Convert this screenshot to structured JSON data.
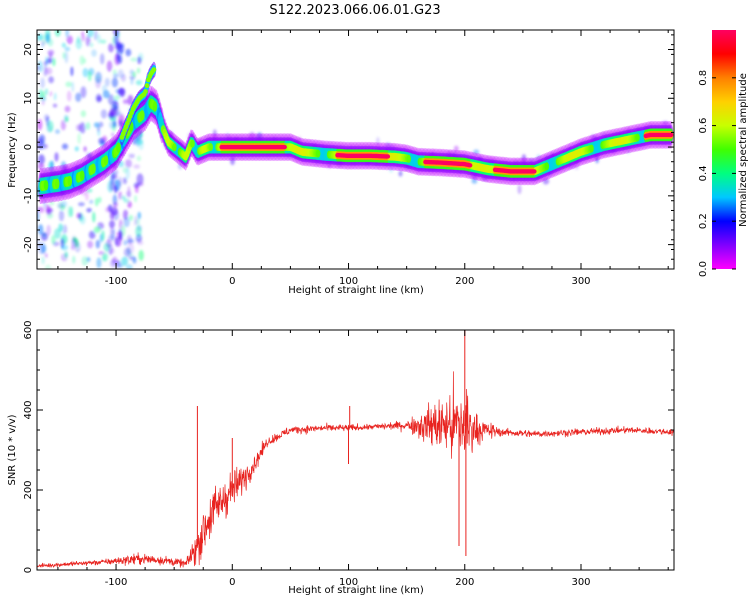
{
  "title": "S122.2023.066.06.01.G23",
  "colors": {
    "trace": "#e8231f",
    "scatter": "#5a00e0",
    "colormap": [
      "#ff00ff",
      "#8000ff",
      "#0000ff",
      "#00c8ff",
      "#00ff80",
      "#40ff00",
      "#c8ff00",
      "#ffd000",
      "#ff8000",
      "#ff0000",
      "#ff0060"
    ]
  },
  "chart_data": [
    {
      "type": "heatmap",
      "title": "S122.2023.066.06.01.G23",
      "xlabel": "Height of straight line (km)",
      "ylabel": "Frequency (Hz)",
      "xlim": [
        -168,
        380
      ],
      "ylim": [
        -25,
        24
      ],
      "x_ticks": [
        "-100",
        "0",
        "100",
        "200",
        "300"
      ],
      "y_ticks": [
        "-20",
        "-10",
        "0",
        "10",
        "20"
      ],
      "colorbar": {
        "label": "Normalized spectral amplitude",
        "range": [
          0.0,
          1.0
        ],
        "ticks": [
          "0.0",
          "0.2",
          "0.4",
          "0.6",
          "0.8"
        ]
      },
      "ridge": {
        "x": [
          -165,
          -150,
          -140,
          -130,
          -120,
          -110,
          -100,
          -95,
          -90,
          -85,
          -80,
          -75,
          -70,
          -65,
          -60,
          -55,
          -50,
          -45,
          -40,
          -35,
          -30,
          -20,
          -10,
          0,
          20,
          40,
          50,
          60,
          80,
          100,
          120,
          140,
          150,
          160,
          180,
          200,
          220,
          240,
          260,
          280,
          300,
          320,
          340,
          360,
          380
        ],
        "y": [
          -8,
          -7.5,
          -7,
          -6,
          -4.5,
          -3,
          -1,
          1,
          3,
          5,
          6,
          7,
          9,
          8,
          4,
          1,
          0,
          -1,
          -2,
          1,
          -1,
          0,
          0,
          0,
          0,
          0,
          0,
          -1,
          -1.5,
          -1.8,
          -1.8,
          -2,
          -2.3,
          -3,
          -3.2,
          -3.5,
          -4.5,
          -5,
          -5,
          -3,
          -1,
          0.5,
          1.5,
          2.5,
          2.5
        ]
      },
      "upper_branch": {
        "x": [
          -95,
          -90,
          -85,
          -80,
          -75,
          -72,
          -70,
          -67
        ],
        "y": [
          2,
          5,
          8,
          10,
          11,
          14,
          15,
          16
        ]
      },
      "peak_amplitude_segments": [
        [
          -10,
          45
        ],
        [
          90,
          135
        ],
        [
          165,
          205
        ],
        [
          225,
          260
        ],
        [
          355,
          380
        ]
      ]
    },
    {
      "type": "line",
      "xlabel": "Height of straight line (km)",
      "ylabel": "SNR (10 * v/v)",
      "xlim": [
        -168,
        380
      ],
      "ylim": [
        0,
        600
      ],
      "x_ticks": [
        "-100",
        "0",
        "100",
        "200",
        "300"
      ],
      "y_ticks": [
        "0",
        "200",
        "400",
        "600"
      ],
      "envelope": {
        "x": [
          -168,
          -140,
          -110,
          -80,
          -60,
          -40,
          -30,
          -20,
          -10,
          0,
          10,
          20,
          30,
          50,
          80,
          100,
          120,
          150,
          170,
          185,
          200,
          210,
          230,
          260,
          300,
          340,
          380
        ],
        "mean": [
          10,
          15,
          20,
          28,
          25,
          15,
          60,
          130,
          170,
          200,
          230,
          270,
          320,
          350,
          355,
          355,
          358,
          362,
          362,
          362,
          360,
          352,
          345,
          340,
          345,
          350,
          345
        ],
        "spread": [
          8,
          10,
          12,
          25,
          20,
          15,
          80,
          110,
          90,
          80,
          60,
          40,
          20,
          18,
          15,
          15,
          12,
          20,
          90,
          140,
          210,
          60,
          18,
          15,
          15,
          14,
          14
        ]
      },
      "spikes": [
        {
          "x": -30,
          "y": 410
        },
        {
          "x": 0,
          "y": 330
        },
        {
          "x": 101,
          "y": 410
        },
        {
          "x": 100,
          "y": 265
        },
        {
          "x": 200,
          "y": 615
        },
        {
          "x": 201,
          "y": 35
        },
        {
          "x": 195,
          "y": 60
        }
      ]
    }
  ]
}
